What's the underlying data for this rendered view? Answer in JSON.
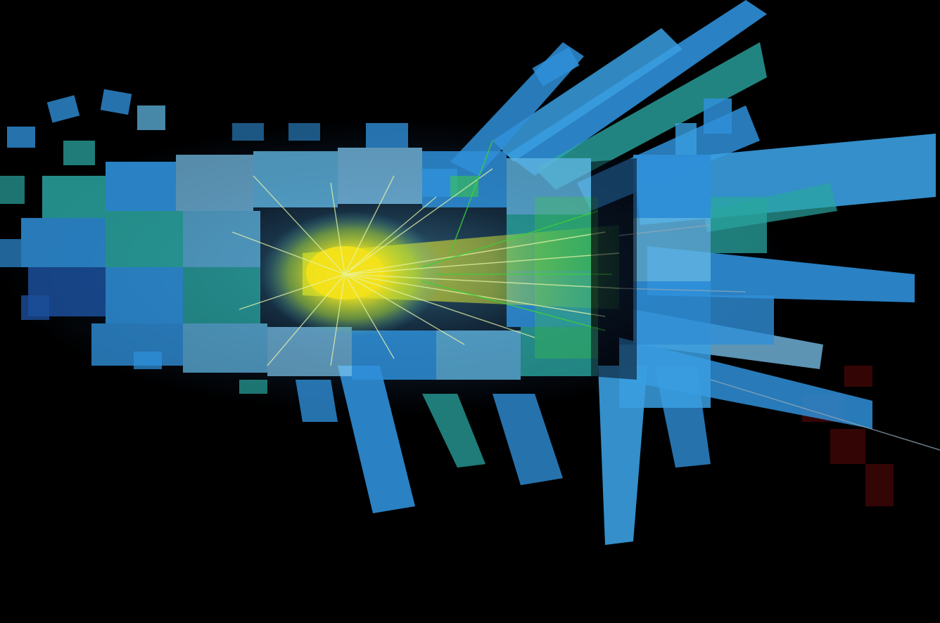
{
  "image": {
    "subject": "particle-collision-event-display",
    "palette": {
      "background": "#000000",
      "core": "#f2e21a",
      "core_glow": "#d6f04a",
      "track_green": "#3ccf3a",
      "track_light": "#e8f4a8",
      "cell_blue": "#2f8fd8",
      "cell_light": "#7cc6f0",
      "cell_teal": "#2aa5a0",
      "cell_dark": "#1b4f9a",
      "shadow": "#0a1a3a",
      "hint_red": "#5a0a0a"
    }
  }
}
